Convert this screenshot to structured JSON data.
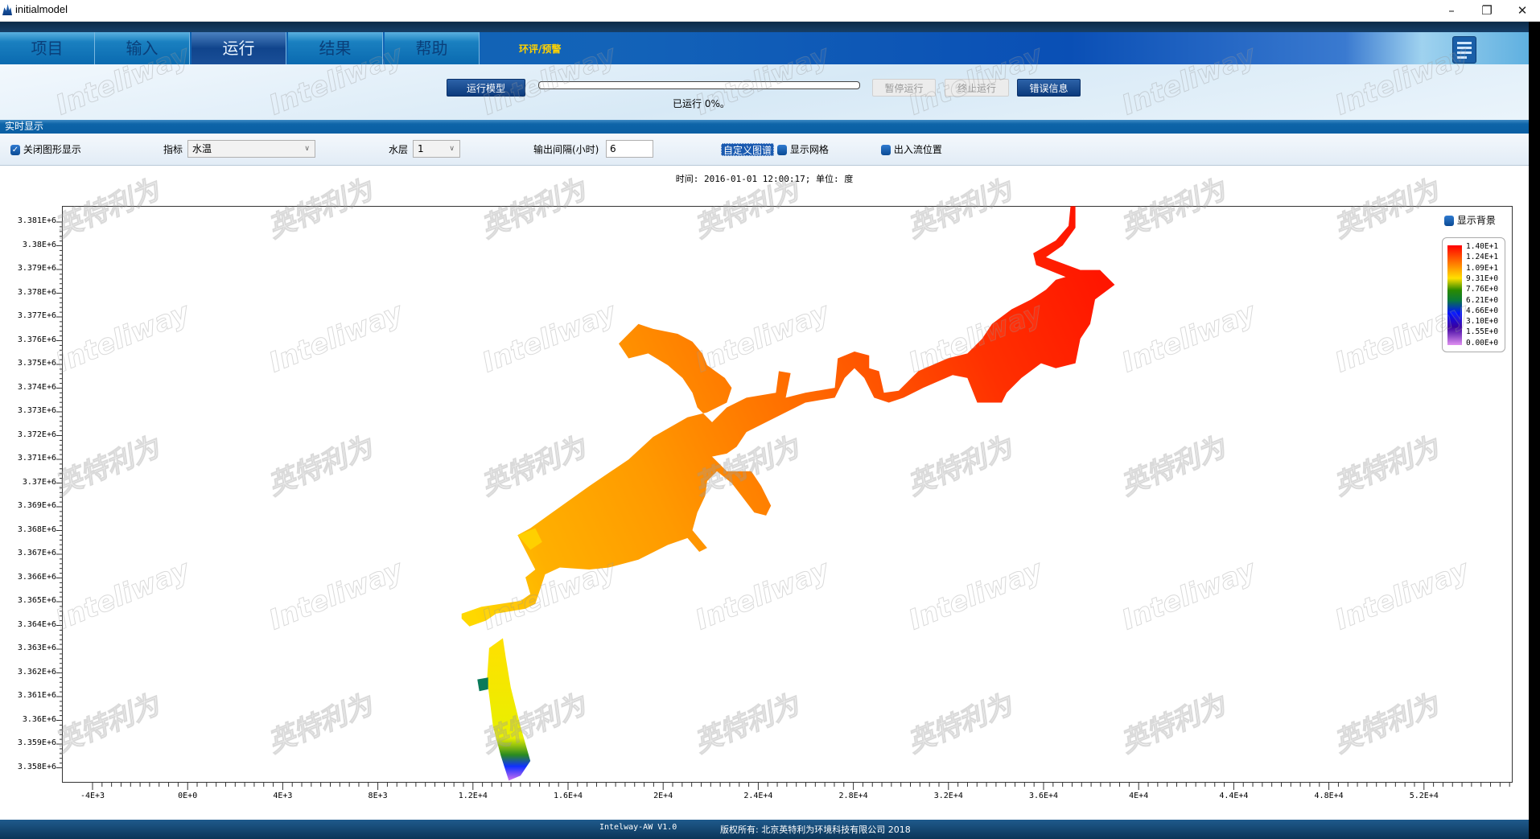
{
  "window": {
    "title": "initialmodel",
    "controls": [
      "–",
      "❐",
      "✕"
    ]
  },
  "nav": {
    "tabs": [
      {
        "label": "项目"
      },
      {
        "label": "输入"
      },
      {
        "label": "运行",
        "selected": true
      },
      {
        "label": "结果"
      },
      {
        "label": "帮助"
      }
    ],
    "special": "环评/预警",
    "icon": "document-edit-icon"
  },
  "toolbar": {
    "run_label": "运行模型",
    "progress_percent": 0,
    "progress_text": "已运行 0%。",
    "pause_label": "暂停运行",
    "stop_label": "终止运行",
    "error_label": "错误信息"
  },
  "realtime": {
    "section_title": "实时显示",
    "close_graphics_label": "关闭图形显示",
    "close_graphics_checked": true,
    "indicator_label": "指标",
    "indicator_value": "水温",
    "layer_label": "水层",
    "layer_value": "1",
    "interval_label": "输出间隔(小时)",
    "interval_value": "6",
    "custom_spectrum_label": "自定义图谱",
    "show_grid_label": "显示网格",
    "inout_label": "出入流位置",
    "time_text": "时间: 2016-01-01 12:00:17; 单位: 度"
  },
  "chart": {
    "y_ticks": [
      "3.381E+6",
      "3.38E+6",
      "3.379E+6",
      "3.378E+6",
      "3.377E+6",
      "3.376E+6",
      "3.375E+6",
      "3.374E+6",
      "3.373E+6",
      "3.372E+6",
      "3.371E+6",
      "3.37E+6",
      "3.369E+6",
      "3.368E+6",
      "3.367E+6",
      "3.366E+6",
      "3.365E+6",
      "3.364E+6",
      "3.363E+6",
      "3.362E+6",
      "3.361E+6",
      "3.36E+6",
      "3.359E+6",
      "3.358E+6"
    ],
    "x_ticks": [
      "-4E+3",
      "0E+0",
      "4E+3",
      "8E+3",
      "1.2E+4",
      "1.6E+4",
      "2E+4",
      "2.4E+4",
      "2.8E+4",
      "3.2E+4",
      "3.6E+4",
      "4E+4",
      "4.4E+4",
      "4.8E+4",
      "5.2E+4"
    ],
    "show_background_label": "显示背景",
    "colorbar_labels": [
      "1.40E+1",
      "1.24E+1",
      "1.09E+1",
      "9.31E+0",
      "7.76E+0",
      "6.21E+0",
      "4.66E+0",
      "3.10E+0",
      "1.55E+0",
      "0.00E+0"
    ],
    "colors": {
      "high": "#ff0000",
      "mid": "#ffe000",
      "low": "#e090f0"
    }
  },
  "footer": {
    "version": "Intelway-AW  V1.0",
    "copyright": "版权所有: 北京英特利为环境科技有限公司 2018"
  },
  "watermark": [
    "Inteliway",
    "英特利为"
  ]
}
